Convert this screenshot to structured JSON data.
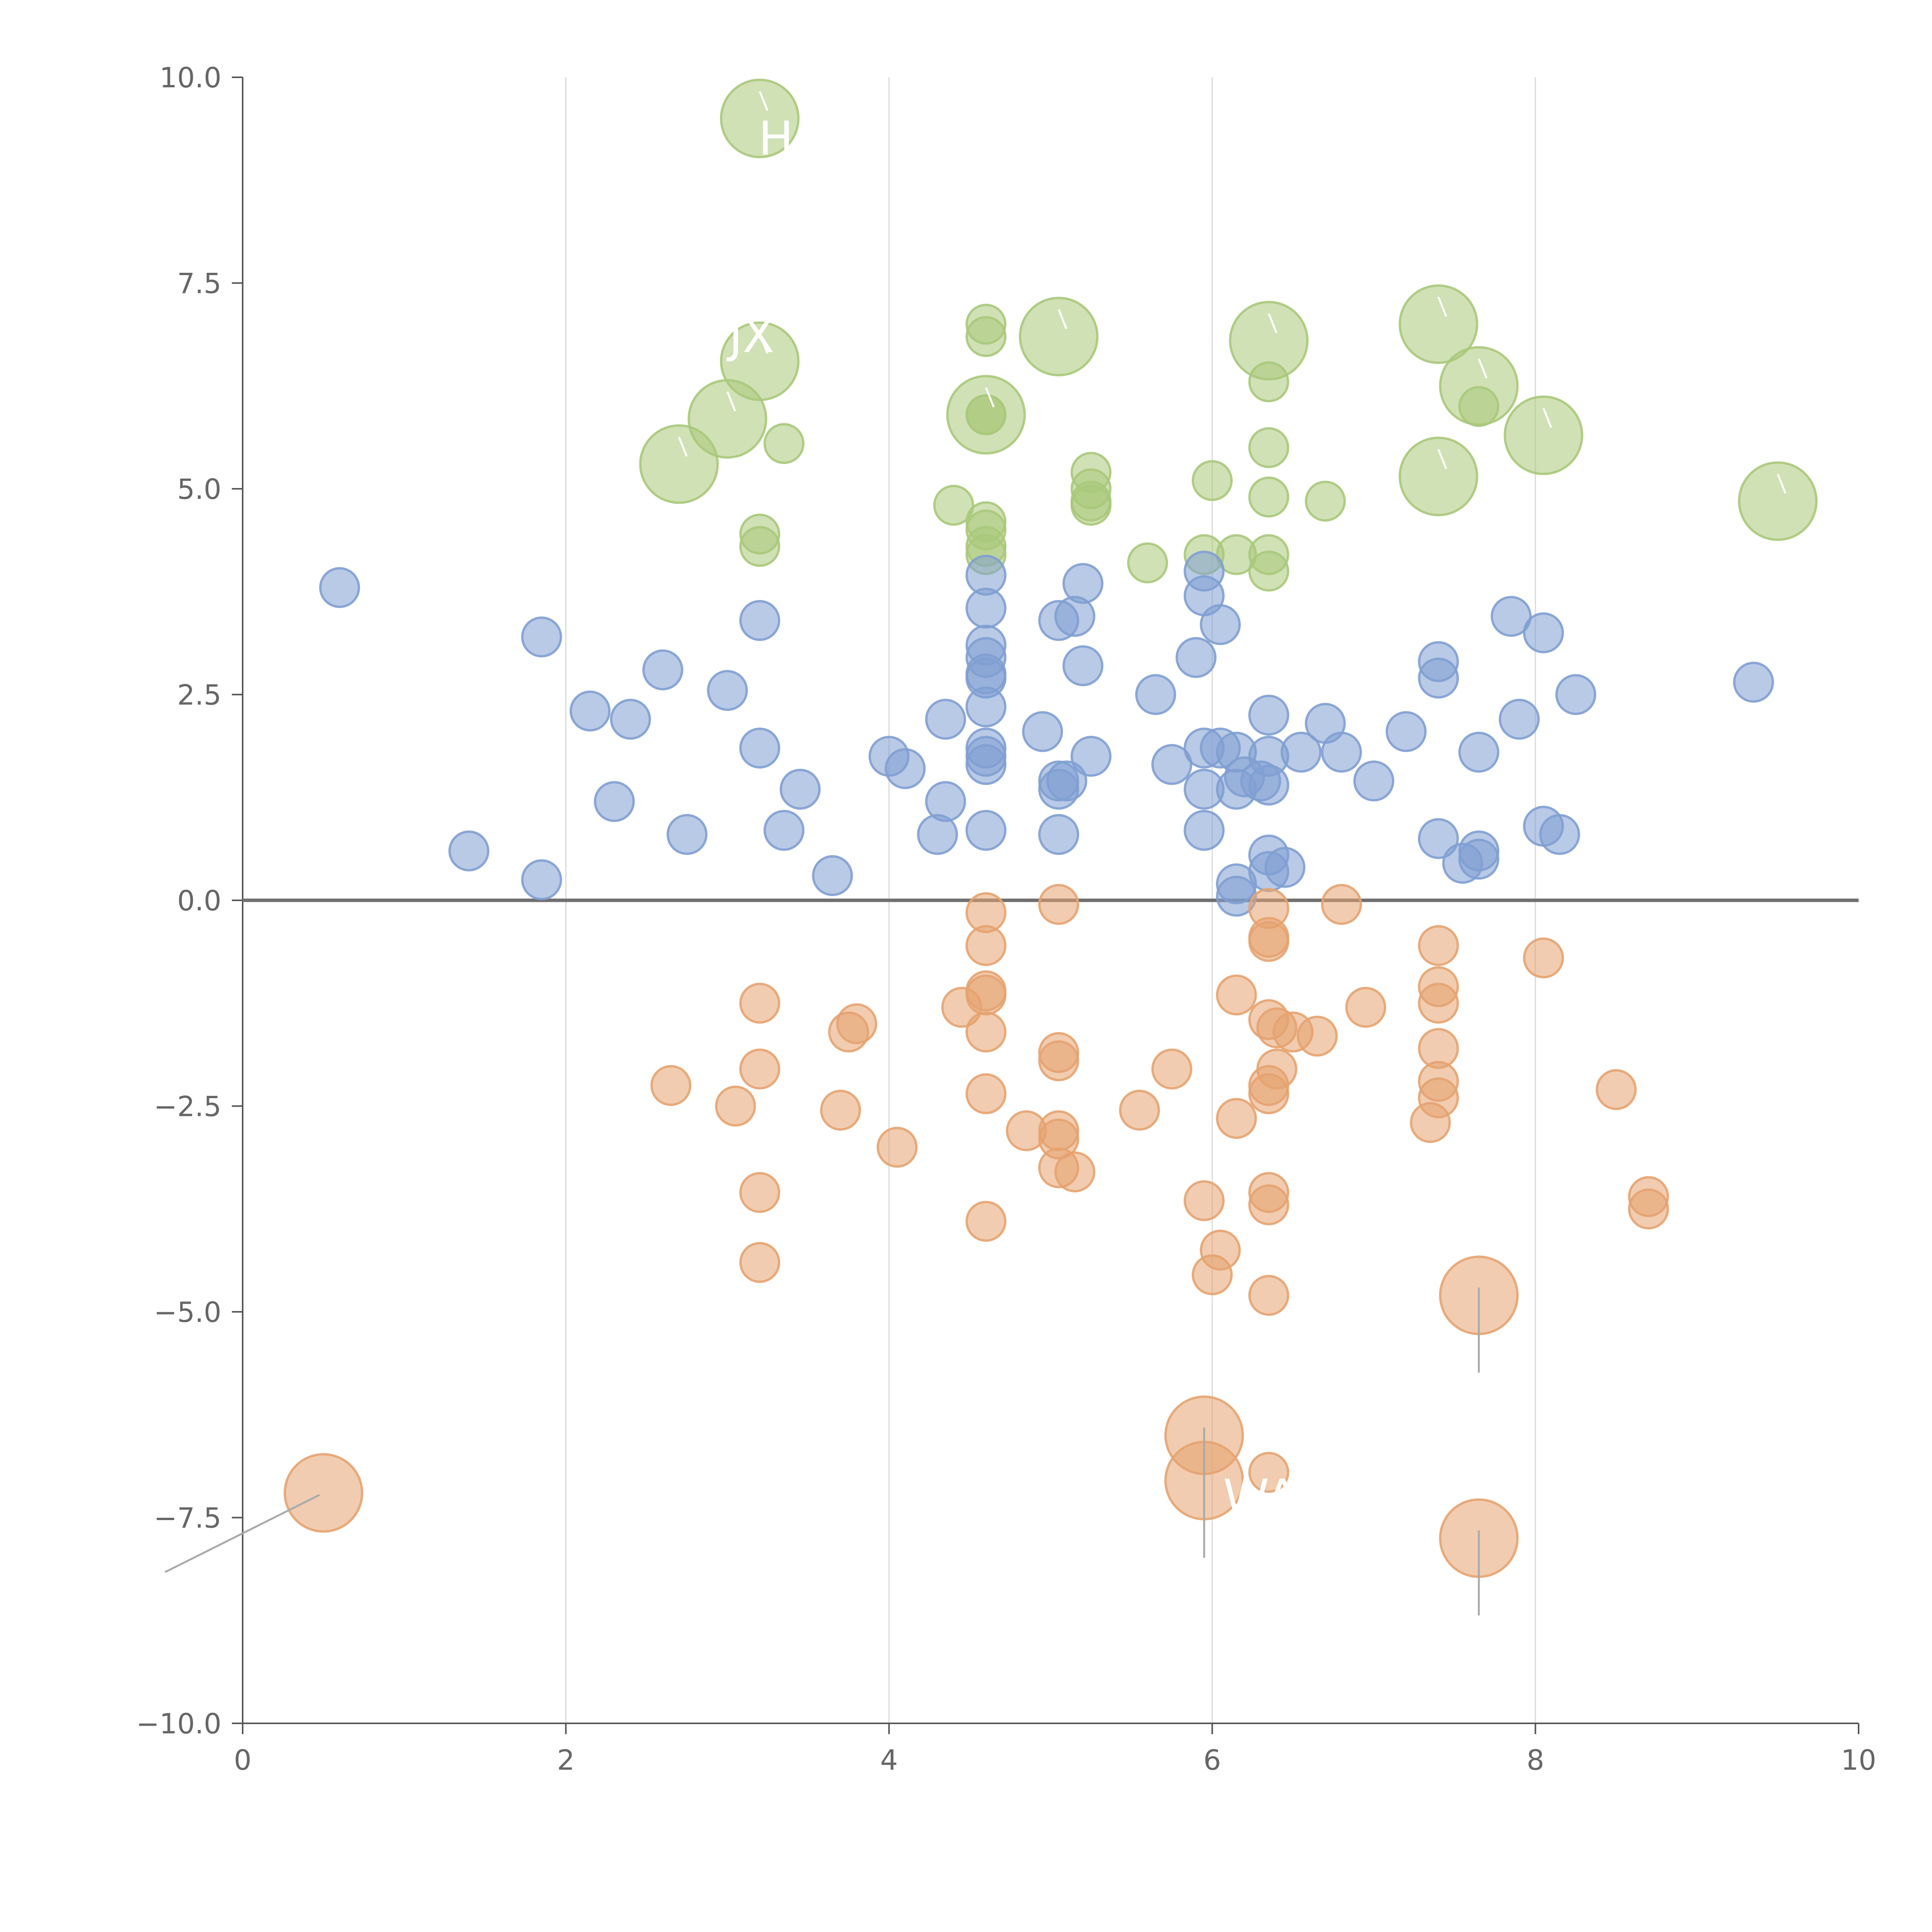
{
  "chart_data": {
    "type": "scatter",
    "title": "",
    "xlabel": "",
    "ylabel": "",
    "xlim": [
      0,
      10
    ],
    "ylim": [
      -10,
      10
    ],
    "grid": "vertical",
    "x_ticks": [
      "0",
      "2",
      "4",
      "6",
      "8",
      "10"
    ],
    "y_ticks": [
      "10.0",
      "7.5",
      "5.0",
      "2.5",
      "0.0",
      "−2.5",
      "−5.0",
      "−7.5",
      "−10.0"
    ],
    "x_tick_values": [
      0,
      2,
      4,
      6,
      8,
      10
    ],
    "y_tick_values": [
      10,
      7.5,
      5,
      2.5,
      0,
      -2.5,
      -5,
      -7.5,
      -10
    ],
    "reference_line_y": 0,
    "colors": {
      "green": "#a9c97a",
      "blue": "#7f9fd1",
      "orange": "#e6a370"
    },
    "series": [
      {
        "name": "green",
        "color": "#a9c97a",
        "points": [
          [
            3.2,
            9.5,
            2
          ],
          [
            3.2,
            6.55,
            2
          ],
          [
            3.0,
            5.85,
            2
          ],
          [
            2.7,
            5.3,
            2
          ],
          [
            3.35,
            5.55,
            1
          ],
          [
            3.2,
            4.45,
            1
          ],
          [
            3.2,
            4.3,
            1
          ],
          [
            4.6,
            7.0,
            1
          ],
          [
            4.6,
            6.85,
            1
          ],
          [
            5.05,
            6.85,
            2
          ],
          [
            4.6,
            5.9,
            2
          ],
          [
            4.6,
            5.9,
            1
          ],
          [
            4.6,
            5.9,
            1
          ],
          [
            5.25,
            5.2,
            1
          ],
          [
            5.25,
            5.0,
            1
          ],
          [
            5.25,
            4.85,
            1
          ],
          [
            5.25,
            4.8,
            1
          ],
          [
            4.4,
            4.8,
            1
          ],
          [
            4.6,
            4.6,
            1
          ],
          [
            4.6,
            4.5,
            1
          ],
          [
            4.6,
            4.3,
            1
          ],
          [
            4.6,
            4.2,
            1
          ],
          [
            5.6,
            4.1,
            1
          ],
          [
            6.0,
            5.1,
            1
          ],
          [
            5.95,
            4.2,
            1
          ],
          [
            6.15,
            4.2,
            1
          ],
          [
            6.35,
            6.8,
            2
          ],
          [
            6.35,
            6.3,
            1
          ],
          [
            6.35,
            5.5,
            1
          ],
          [
            6.35,
            4.9,
            1
          ],
          [
            6.35,
            4.2,
            1
          ],
          [
            6.35,
            4.0,
            1
          ],
          [
            6.7,
            4.85,
            1
          ],
          [
            7.4,
            7.0,
            2
          ],
          [
            7.65,
            6.25,
            2
          ],
          [
            7.65,
            6.0,
            1
          ],
          [
            7.4,
            5.15,
            2
          ],
          [
            8.05,
            5.65,
            2
          ],
          [
            9.5,
            4.85,
            2
          ]
        ]
      },
      {
        "name": "blue",
        "color": "#7f9fd1",
        "points": [
          [
            0.6,
            3.8,
            1
          ],
          [
            1.85,
            3.2,
            1
          ],
          [
            2.15,
            2.3,
            1
          ],
          [
            2.4,
            2.2,
            1
          ],
          [
            2.6,
            2.8,
            1
          ],
          [
            3.0,
            2.55,
            1
          ],
          [
            3.2,
            3.4,
            1
          ],
          [
            3.2,
            1.85,
            1
          ],
          [
            2.3,
            1.2,
            1
          ],
          [
            1.4,
            0.6,
            1
          ],
          [
            1.85,
            0.25,
            1
          ],
          [
            2.75,
            0.8,
            1
          ],
          [
            3.35,
            0.85,
            1
          ],
          [
            3.45,
            1.35,
            1
          ],
          [
            3.65,
            0.3,
            1
          ],
          [
            4.0,
            1.75,
            1
          ],
          [
            4.1,
            1.6,
            1
          ],
          [
            4.35,
            2.2,
            1
          ],
          [
            4.35,
            1.2,
            1
          ],
          [
            4.3,
            0.8,
            1
          ],
          [
            4.6,
            3.95,
            1
          ],
          [
            4.6,
            3.55,
            1
          ],
          [
            4.6,
            3.1,
            1
          ],
          [
            4.6,
            2.95,
            1
          ],
          [
            4.6,
            2.75,
            1
          ],
          [
            4.6,
            2.7,
            1
          ],
          [
            4.6,
            2.35,
            1
          ],
          [
            4.6,
            1.85,
            1
          ],
          [
            4.6,
            1.75,
            1
          ],
          [
            4.6,
            1.65,
            1
          ],
          [
            4.6,
            0.85,
            1
          ],
          [
            4.95,
            2.05,
            1
          ],
          [
            5.05,
            3.4,
            1
          ],
          [
            5.15,
            3.45,
            1
          ],
          [
            5.2,
            3.85,
            1
          ],
          [
            5.2,
            2.85,
            1
          ],
          [
            5.25,
            1.75,
            1
          ],
          [
            5.05,
            1.45,
            1
          ],
          [
            5.05,
            1.35,
            1
          ],
          [
            5.1,
            1.45,
            1
          ],
          [
            5.05,
            0.8,
            1
          ],
          [
            5.65,
            2.5,
            1
          ],
          [
            5.75,
            1.65,
            1
          ],
          [
            5.9,
            2.95,
            1
          ],
          [
            5.95,
            4.0,
            1
          ],
          [
            5.95,
            3.7,
            1
          ],
          [
            6.05,
            3.35,
            1
          ],
          [
            5.95,
            1.85,
            1
          ],
          [
            5.95,
            1.35,
            1
          ],
          [
            6.05,
            1.85,
            1
          ],
          [
            5.95,
            0.85,
            1
          ],
          [
            6.15,
            1.8,
            1
          ],
          [
            6.15,
            1.35,
            1
          ],
          [
            6.2,
            1.5,
            1
          ],
          [
            6.35,
            2.25,
            1
          ],
          [
            6.35,
            1.75,
            1
          ],
          [
            6.35,
            1.4,
            1
          ],
          [
            6.3,
            1.45,
            1
          ],
          [
            6.35,
            0.55,
            1
          ],
          [
            6.35,
            0.35,
            1
          ],
          [
            6.45,
            0.4,
            1
          ],
          [
            6.15,
            0.2,
            1
          ],
          [
            6.15,
            0.05,
            1
          ],
          [
            6.55,
            1.8,
            1
          ],
          [
            6.7,
            2.15,
            1
          ],
          [
            6.8,
            1.8,
            1
          ],
          [
            7.0,
            1.45,
            1
          ],
          [
            7.2,
            2.05,
            1
          ],
          [
            7.4,
            2.9,
            1
          ],
          [
            7.4,
            2.7,
            1
          ],
          [
            7.4,
            0.75,
            1
          ],
          [
            7.55,
            0.45,
            1
          ],
          [
            7.65,
            0.6,
            1
          ],
          [
            7.65,
            0.5,
            1
          ],
          [
            7.65,
            1.8,
            1
          ],
          [
            7.85,
            3.45,
            1
          ],
          [
            7.9,
            2.2,
            1
          ],
          [
            8.05,
            3.25,
            1
          ],
          [
            8.05,
            0.9,
            1
          ],
          [
            8.15,
            0.8,
            1
          ],
          [
            8.25,
            2.5,
            1
          ],
          [
            9.35,
            2.65,
            1
          ]
        ]
      },
      {
        "name": "orange",
        "color": "#e6a370",
        "points": [
          [
            0.5,
            -7.2,
            2
          ],
          [
            2.65,
            -2.25,
            1
          ],
          [
            3.05,
            -2.5,
            1
          ],
          [
            3.2,
            -1.25,
            1
          ],
          [
            3.2,
            -2.05,
            1
          ],
          [
            3.2,
            -3.55,
            1
          ],
          [
            3.2,
            -4.4,
            1
          ],
          [
            3.7,
            -2.55,
            1
          ],
          [
            3.75,
            -1.6,
            1
          ],
          [
            3.8,
            -1.5,
            1
          ],
          [
            4.05,
            -3.0,
            1
          ],
          [
            4.45,
            -1.3,
            1
          ],
          [
            4.6,
            -0.15,
            1
          ],
          [
            4.6,
            -0.55,
            1
          ],
          [
            4.6,
            -1.1,
            1
          ],
          [
            4.6,
            -1.15,
            1
          ],
          [
            4.6,
            -1.6,
            1
          ],
          [
            4.6,
            -2.35,
            1
          ],
          [
            4.6,
            -3.9,
            1
          ],
          [
            4.85,
            -2.8,
            1
          ],
          [
            5.05,
            -0.05,
            1
          ],
          [
            5.05,
            -1.85,
            1
          ],
          [
            5.05,
            -1.95,
            1
          ],
          [
            5.05,
            -2.8,
            1
          ],
          [
            5.05,
            -2.9,
            1
          ],
          [
            5.05,
            -3.25,
            1
          ],
          [
            5.15,
            -3.3,
            1
          ],
          [
            5.55,
            -2.55,
            1
          ],
          [
            5.75,
            -2.05,
            1
          ],
          [
            5.95,
            -3.65,
            1
          ],
          [
            6.0,
            -4.55,
            1
          ],
          [
            6.05,
            -4.25,
            1
          ],
          [
            6.15,
            -1.15,
            1
          ],
          [
            6.15,
            -2.65,
            1
          ],
          [
            5.95,
            -6.5,
            2
          ],
          [
            5.95,
            -7.05,
            2
          ],
          [
            6.35,
            -0.1,
            1
          ],
          [
            6.35,
            -0.45,
            1
          ],
          [
            6.35,
            -0.5,
            1
          ],
          [
            6.35,
            -1.45,
            1
          ],
          [
            6.4,
            -1.55,
            1
          ],
          [
            6.35,
            -2.25,
            1
          ],
          [
            6.35,
            -2.35,
            1
          ],
          [
            6.4,
            -2.05,
            1
          ],
          [
            6.35,
            -3.55,
            1
          ],
          [
            6.35,
            -3.7,
            1
          ],
          [
            6.35,
            -4.8,
            1
          ],
          [
            6.35,
            -6.95,
            1
          ],
          [
            6.5,
            -1.6,
            1
          ],
          [
            6.65,
            -1.65,
            1
          ],
          [
            6.8,
            -0.05,
            1
          ],
          [
            6.95,
            -1.3,
            1
          ],
          [
            7.35,
            -2.7,
            1
          ],
          [
            7.4,
            -2.4,
            1
          ],
          [
            7.4,
            -2.2,
            1
          ],
          [
            7.4,
            -1.8,
            1
          ],
          [
            7.4,
            -1.05,
            1
          ],
          [
            7.4,
            -1.25,
            1
          ],
          [
            7.4,
            -0.55,
            1
          ],
          [
            7.65,
            -4.8,
            2
          ],
          [
            7.65,
            -7.75,
            2
          ],
          [
            8.05,
            -0.7,
            1
          ],
          [
            8.5,
            -2.3,
            1
          ],
          [
            8.7,
            -3.6,
            1
          ],
          [
            8.7,
            -3.75,
            1
          ]
        ]
      }
    ],
    "annotations": [
      {
        "text": "H",
        "at": [
          3.2,
          9.5
        ],
        "label_at": [
          3.3,
          9.25
        ]
      },
      {
        "text": "JX",
        "at": [
          3.2,
          6.55
        ],
        "label_at": [
          3.15,
          6.85
        ]
      },
      {
        "text": "WA",
        "at": [
          5.95,
          -7.05
        ],
        "label_at": [
          6.3,
          -7.25
        ]
      }
    ]
  }
}
